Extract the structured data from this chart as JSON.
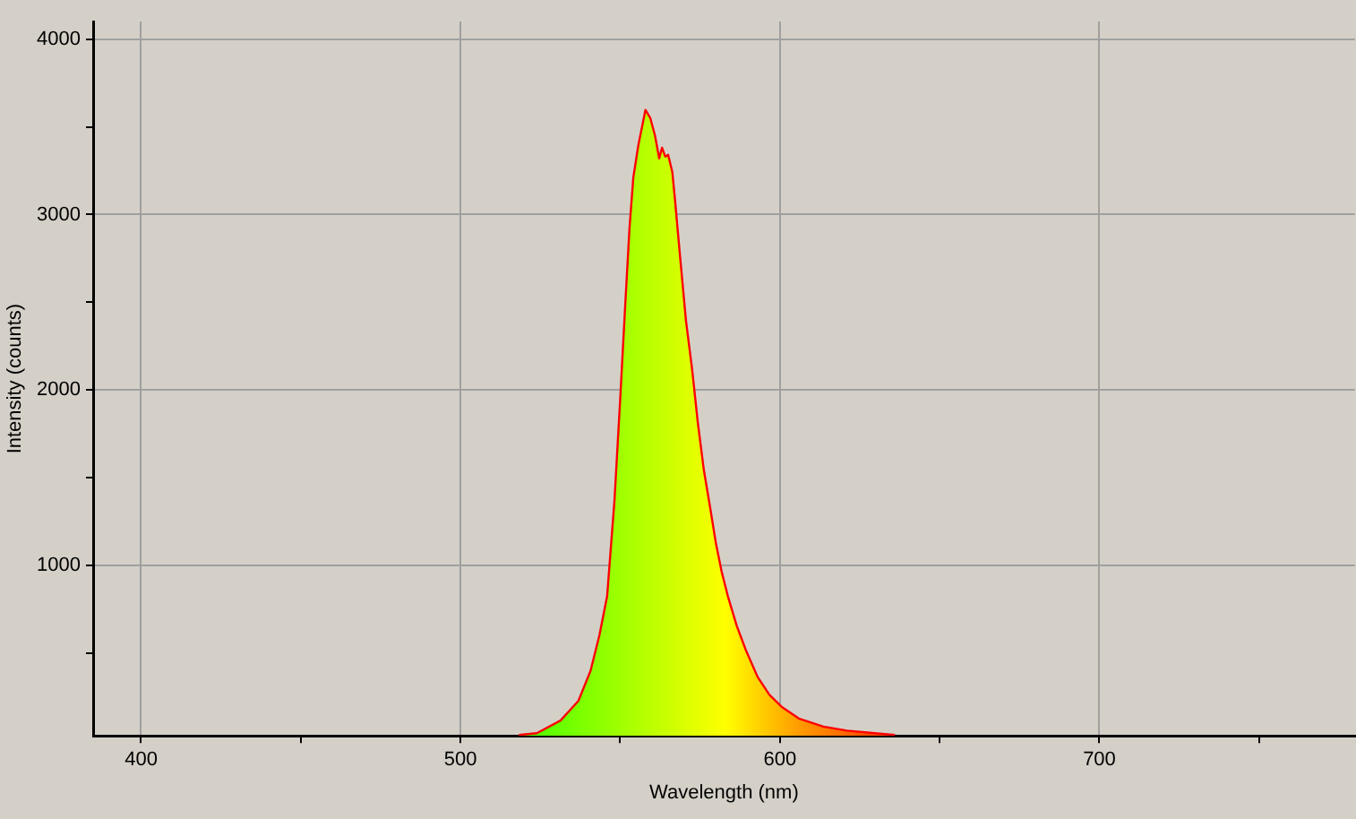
{
  "chart_data": {
    "type": "area",
    "xlabel": "Wavelength (nm)",
    "ylabel": "Intensity (counts)",
    "x": [
      518.3,
      523.9,
      531.3,
      536.9,
      540.7,
      543.5,
      545.9,
      548.2,
      550.0,
      551.5,
      552.9,
      554.1,
      555.7,
      557.9,
      559.4,
      560.9,
      562.2,
      563.1,
      564.1,
      565.0,
      566.3,
      567.2,
      568.7,
      570.6,
      572.5,
      574.3,
      576.2,
      578.1,
      579.9,
      581.8,
      583.7,
      586.5,
      589.3,
      593.0,
      596.7,
      600.5,
      606.1,
      613.6,
      621.0,
      636.0
    ],
    "series": [
      {
        "color": "#ff0000",
        "values": [
          35,
          45,
          117,
          229,
          400,
          604,
          826,
          1371,
          1950,
          2461,
          2921,
          3211,
          3398,
          3596,
          3551,
          3449,
          3320,
          3381,
          3330,
          3340,
          3244,
          3075,
          2768,
          2393,
          2120,
          1814,
          1542,
          1337,
          1133,
          962,
          826,
          656,
          520,
          366,
          264,
          196,
          127,
          83,
          60,
          35
        ]
      }
    ],
    "xlim": [
      385,
      780
    ],
    "xticks": [
      400,
      {
        "value": 450,
        "label": null
      },
      500,
      {
        "value": 550,
        "label": null
      },
      600,
      {
        "value": 650,
        "label": null
      },
      700,
      {
        "value": 750,
        "label": null
      }
    ],
    "ylim": [
      30,
      4100
    ],
    "yticks": [
      {
        "value": 500,
        "label": null
      },
      1000,
      {
        "value": 1500,
        "label": null
      },
      2000,
      {
        "value": 2500,
        "label": null
      },
      3000,
      {
        "value": 3500,
        "label": null
      },
      4000
    ],
    "grid": true,
    "legend": false,
    "marker": "none",
    "line_style": "solid"
  }
}
